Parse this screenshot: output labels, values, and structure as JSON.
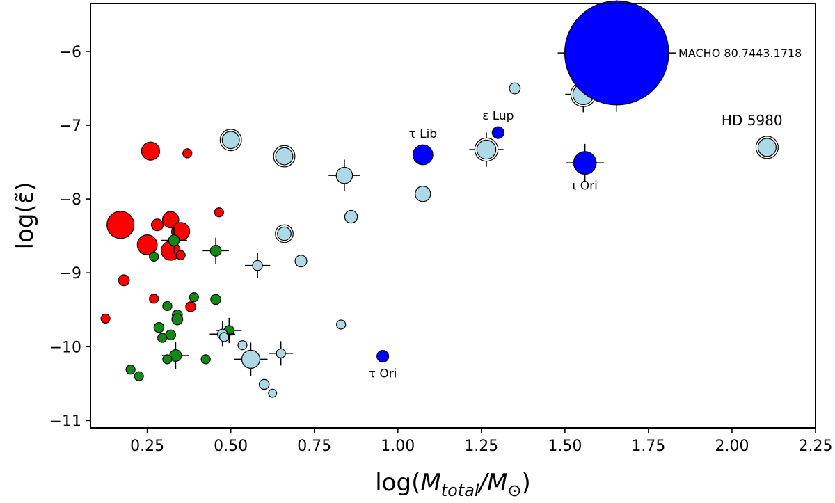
{
  "chart_data": {
    "type": "scatter",
    "title": "",
    "xlabel_parts": {
      "prefix": "log(",
      "main": "M",
      "sub": "total",
      "sep": "/M",
      "sub2": "⊙",
      "suffix": ")"
    },
    "ylabel": "log(ε̃)",
    "xlim": [
      0.08,
      2.25
    ],
    "ylim": [
      -11.1,
      -5.35
    ],
    "xticks": [
      {
        "value": 0.25,
        "label": "0.25"
      },
      {
        "value": 0.5,
        "label": "0.50"
      },
      {
        "value": 0.75,
        "label": "0.75"
      },
      {
        "value": 1.0,
        "label": "1.00"
      },
      {
        "value": 1.25,
        "label": "1.25"
      },
      {
        "value": 1.5,
        "label": "1.50"
      },
      {
        "value": 1.75,
        "label": "1.75"
      },
      {
        "value": 2.0,
        "label": "2.00"
      },
      {
        "value": 2.25,
        "label": "2.25"
      }
    ],
    "yticks": [
      {
        "value": -6,
        "label": "−6"
      },
      {
        "value": -7,
        "label": "−7"
      },
      {
        "value": -8,
        "label": "−8"
      },
      {
        "value": -9,
        "label": "−9"
      },
      {
        "value": -10,
        "label": "−10"
      },
      {
        "value": -11,
        "label": "−11"
      }
    ],
    "grid": false,
    "colors": {
      "red": "#ff0000",
      "green": "#138a13",
      "lightblue": "#add8e6",
      "blue": "#0000ff"
    },
    "series": [
      {
        "name": "red",
        "color": "#ff0000",
        "points": [
          {
            "x": 0.17,
            "y": -8.35,
            "size": 3.0
          },
          {
            "x": 0.26,
            "y": -7.35,
            "size": 2.0
          },
          {
            "x": 0.37,
            "y": -7.38,
            "size": 1.0
          },
          {
            "x": 0.28,
            "y": -8.35,
            "size": 1.3
          },
          {
            "x": 0.32,
            "y": -8.28,
            "size": 1.8
          },
          {
            "x": 0.35,
            "y": -8.44,
            "size": 2.0
          },
          {
            "x": 0.25,
            "y": -8.62,
            "size": 2.2
          },
          {
            "x": 0.32,
            "y": -8.7,
            "size": 2.1
          },
          {
            "x": 0.35,
            "y": -8.76,
            "size": 1.0
          },
          {
            "x": 0.465,
            "y": -8.18,
            "size": 1.0
          },
          {
            "x": 0.18,
            "y": -9.1,
            "size": 1.2
          },
          {
            "x": 0.27,
            "y": -9.35,
            "size": 1.0
          },
          {
            "x": 0.38,
            "y": -9.46,
            "size": 1.1
          },
          {
            "x": 0.125,
            "y": -9.62,
            "size": 1.0
          }
        ]
      },
      {
        "name": "green",
        "color": "#138a13",
        "points": [
          {
            "x": 0.33,
            "y": -8.56,
            "size": 1.2,
            "err": true
          },
          {
            "x": 0.27,
            "y": -8.78,
            "size": 1.0
          },
          {
            "x": 0.455,
            "y": -8.7,
            "size": 1.2,
            "err": true
          },
          {
            "x": 0.39,
            "y": -9.33,
            "size": 1.0
          },
          {
            "x": 0.455,
            "y": -9.36,
            "size": 1.1
          },
          {
            "x": 0.31,
            "y": -9.45,
            "size": 1.0
          },
          {
            "x": 0.34,
            "y": -9.57,
            "size": 1.1
          },
          {
            "x": 0.34,
            "y": -9.63,
            "size": 1.2
          },
          {
            "x": 0.285,
            "y": -9.74,
            "size": 1.1
          },
          {
            "x": 0.32,
            "y": -9.84,
            "size": 1.1
          },
          {
            "x": 0.295,
            "y": -9.88,
            "size": 1.0
          },
          {
            "x": 0.495,
            "y": -9.78,
            "size": 1.1,
            "err": true
          },
          {
            "x": 0.335,
            "y": -10.12,
            "size": 1.3,
            "err": true
          },
          {
            "x": 0.31,
            "y": -10.17,
            "size": 1.0
          },
          {
            "x": 0.425,
            "y": -10.17,
            "size": 1.0
          },
          {
            "x": 0.2,
            "y": -10.31,
            "size": 1.0
          },
          {
            "x": 0.225,
            "y": -10.4,
            "size": 1.0
          }
        ]
      },
      {
        "name": "lightblue",
        "color": "#add8e6",
        "points": [
          {
            "x": 1.35,
            "y": -6.5,
            "size": 1.2
          },
          {
            "x": 1.555,
            "y": -6.58,
            "size": 2.3,
            "ring": true,
            "err": true
          },
          {
            "x": 0.5,
            "y": -7.2,
            "size": 1.9,
            "ring": true
          },
          {
            "x": 0.66,
            "y": -7.42,
            "size": 1.9,
            "ring": true
          },
          {
            "x": 1.265,
            "y": -7.33,
            "size": 2.1,
            "ring": true,
            "err": true
          },
          {
            "x": 2.105,
            "y": -7.3,
            "size": 2.0,
            "ring": true
          },
          {
            "x": 0.84,
            "y": -7.68,
            "size": 1.8,
            "err": true
          },
          {
            "x": 1.075,
            "y": -7.93,
            "size": 1.7
          },
          {
            "x": 0.86,
            "y": -8.24,
            "size": 1.4
          },
          {
            "x": 0.66,
            "y": -8.47,
            "size": 1.5,
            "ring": true
          },
          {
            "x": 0.58,
            "y": -8.9,
            "size": 1.1,
            "err": true
          },
          {
            "x": 0.71,
            "y": -8.84,
            "size": 1.3
          },
          {
            "x": 0.83,
            "y": -9.7,
            "size": 1.0
          },
          {
            "x": 0.475,
            "y": -9.83,
            "size": 1.1,
            "err": true
          },
          {
            "x": 0.48,
            "y": -9.87,
            "size": 1.0
          },
          {
            "x": 0.535,
            "y": -9.98,
            "size": 1.0
          },
          {
            "x": 0.65,
            "y": -10.09,
            "size": 1.0,
            "err": true
          },
          {
            "x": 0.56,
            "y": -10.17,
            "size": 2.0,
            "err": true
          },
          {
            "x": 0.6,
            "y": -10.51,
            "size": 1.1
          },
          {
            "x": 0.625,
            "y": -10.63,
            "size": 0.9
          }
        ]
      },
      {
        "name": "blue",
        "color": "#0000ff",
        "points": [
          {
            "x": 1.655,
            "y": -6.02,
            "size": 11.5,
            "err": true,
            "label": "MACHO 80.7443.1718",
            "label_pos": "right"
          },
          {
            "x": 1.075,
            "y": -7.4,
            "size": 2.2,
            "label": "τ Lib",
            "label_pos": "above"
          },
          {
            "x": 1.3,
            "y": -7.1,
            "size": 1.3,
            "label": "ε Lup",
            "label_pos": "above"
          },
          {
            "x": 1.56,
            "y": -7.51,
            "size": 2.5,
            "err": true,
            "label": "ι Ori",
            "label_pos": "below"
          },
          {
            "x": 0.955,
            "y": -10.13,
            "size": 1.3,
            "label": "τ Ori",
            "label_pos": "below"
          }
        ]
      }
    ],
    "annotations": [
      {
        "text": "HD 5980",
        "x": 2.06,
        "y": -7.0
      }
    ]
  }
}
